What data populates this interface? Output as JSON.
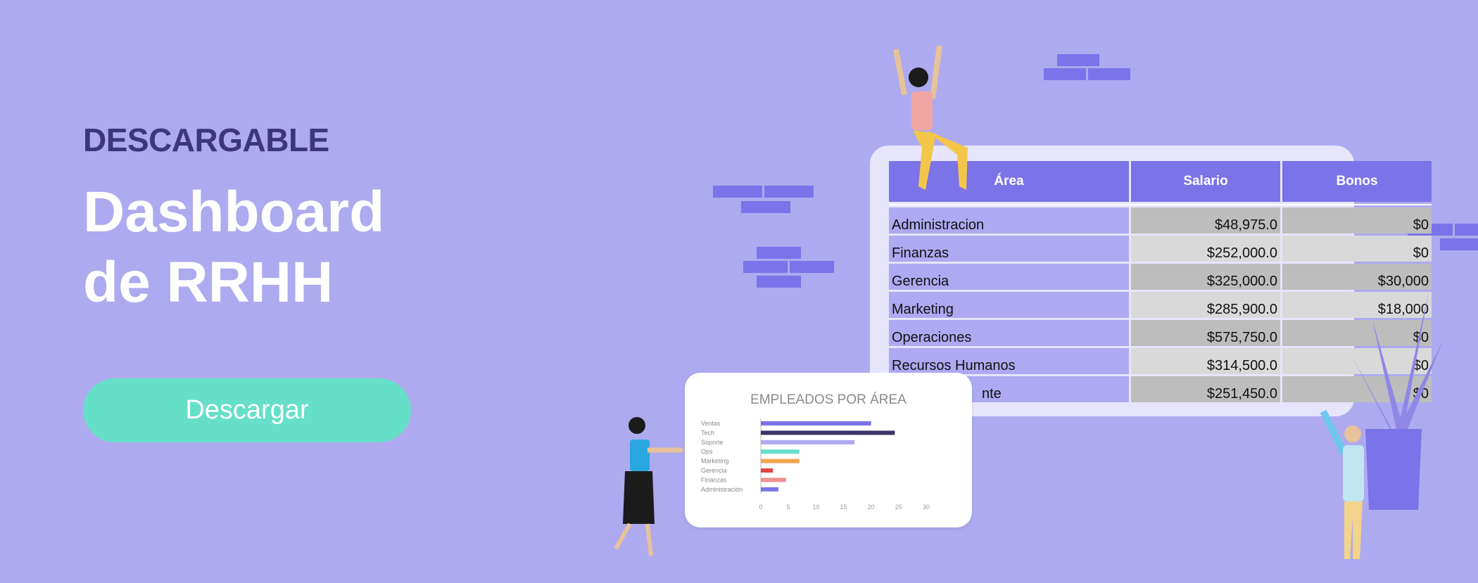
{
  "hero": {
    "eyebrow": "DESCARGABLE",
    "title_line1": "Dashboard",
    "title_line2": "de RRHH",
    "button": "Descargar"
  },
  "colors": {
    "background": "#adaaef",
    "accent": "#7b73e8",
    "button": "#66dfc8"
  },
  "table": {
    "headers": [
      "Área",
      "Salario",
      "Bonos"
    ],
    "rows": [
      {
        "area": "Administracion",
        "salario": "$48,975.0",
        "bonos": "$0"
      },
      {
        "area": "Finanzas",
        "salario": "$252,000.0",
        "bonos": "$0"
      },
      {
        "area": "Gerencia",
        "salario": "$325,000.0",
        "bonos": "$30,000"
      },
      {
        "area": "Marketing",
        "salario": "$285,900.0",
        "bonos": "$18,000"
      },
      {
        "area": "Operaciones",
        "salario": "$575,750.0",
        "bonos": "$0"
      },
      {
        "area": "Recursos Humanos",
        "salario": "$314,500.0",
        "bonos": "$0"
      },
      {
        "area": "nte",
        "salario": "$251,450.0",
        "bonos": "$0"
      }
    ]
  },
  "chart_data": {
    "type": "bar",
    "orientation": "horizontal",
    "title": "EMPLEADOS POR  ÁREA",
    "categories": [
      "Ventas",
      "Tech",
      "Soporte",
      "Ops",
      "Marketing",
      "Gerencia",
      "Finanzas",
      "Administración"
    ],
    "values": [
      20,
      24.3,
      17,
      7,
      7,
      2.2,
      4.6,
      3.2
    ],
    "colors": [
      "#7b73e8",
      "#3b3568",
      "#aea9f1",
      "#66dfc8",
      "#f0a552",
      "#e04545",
      "#ee9090",
      "#7b73e8"
    ],
    "xlim": [
      0,
      30
    ],
    "xticks": [
      "0",
      "5",
      "10",
      "15",
      "20",
      "25",
      "30"
    ],
    "grid": false
  }
}
